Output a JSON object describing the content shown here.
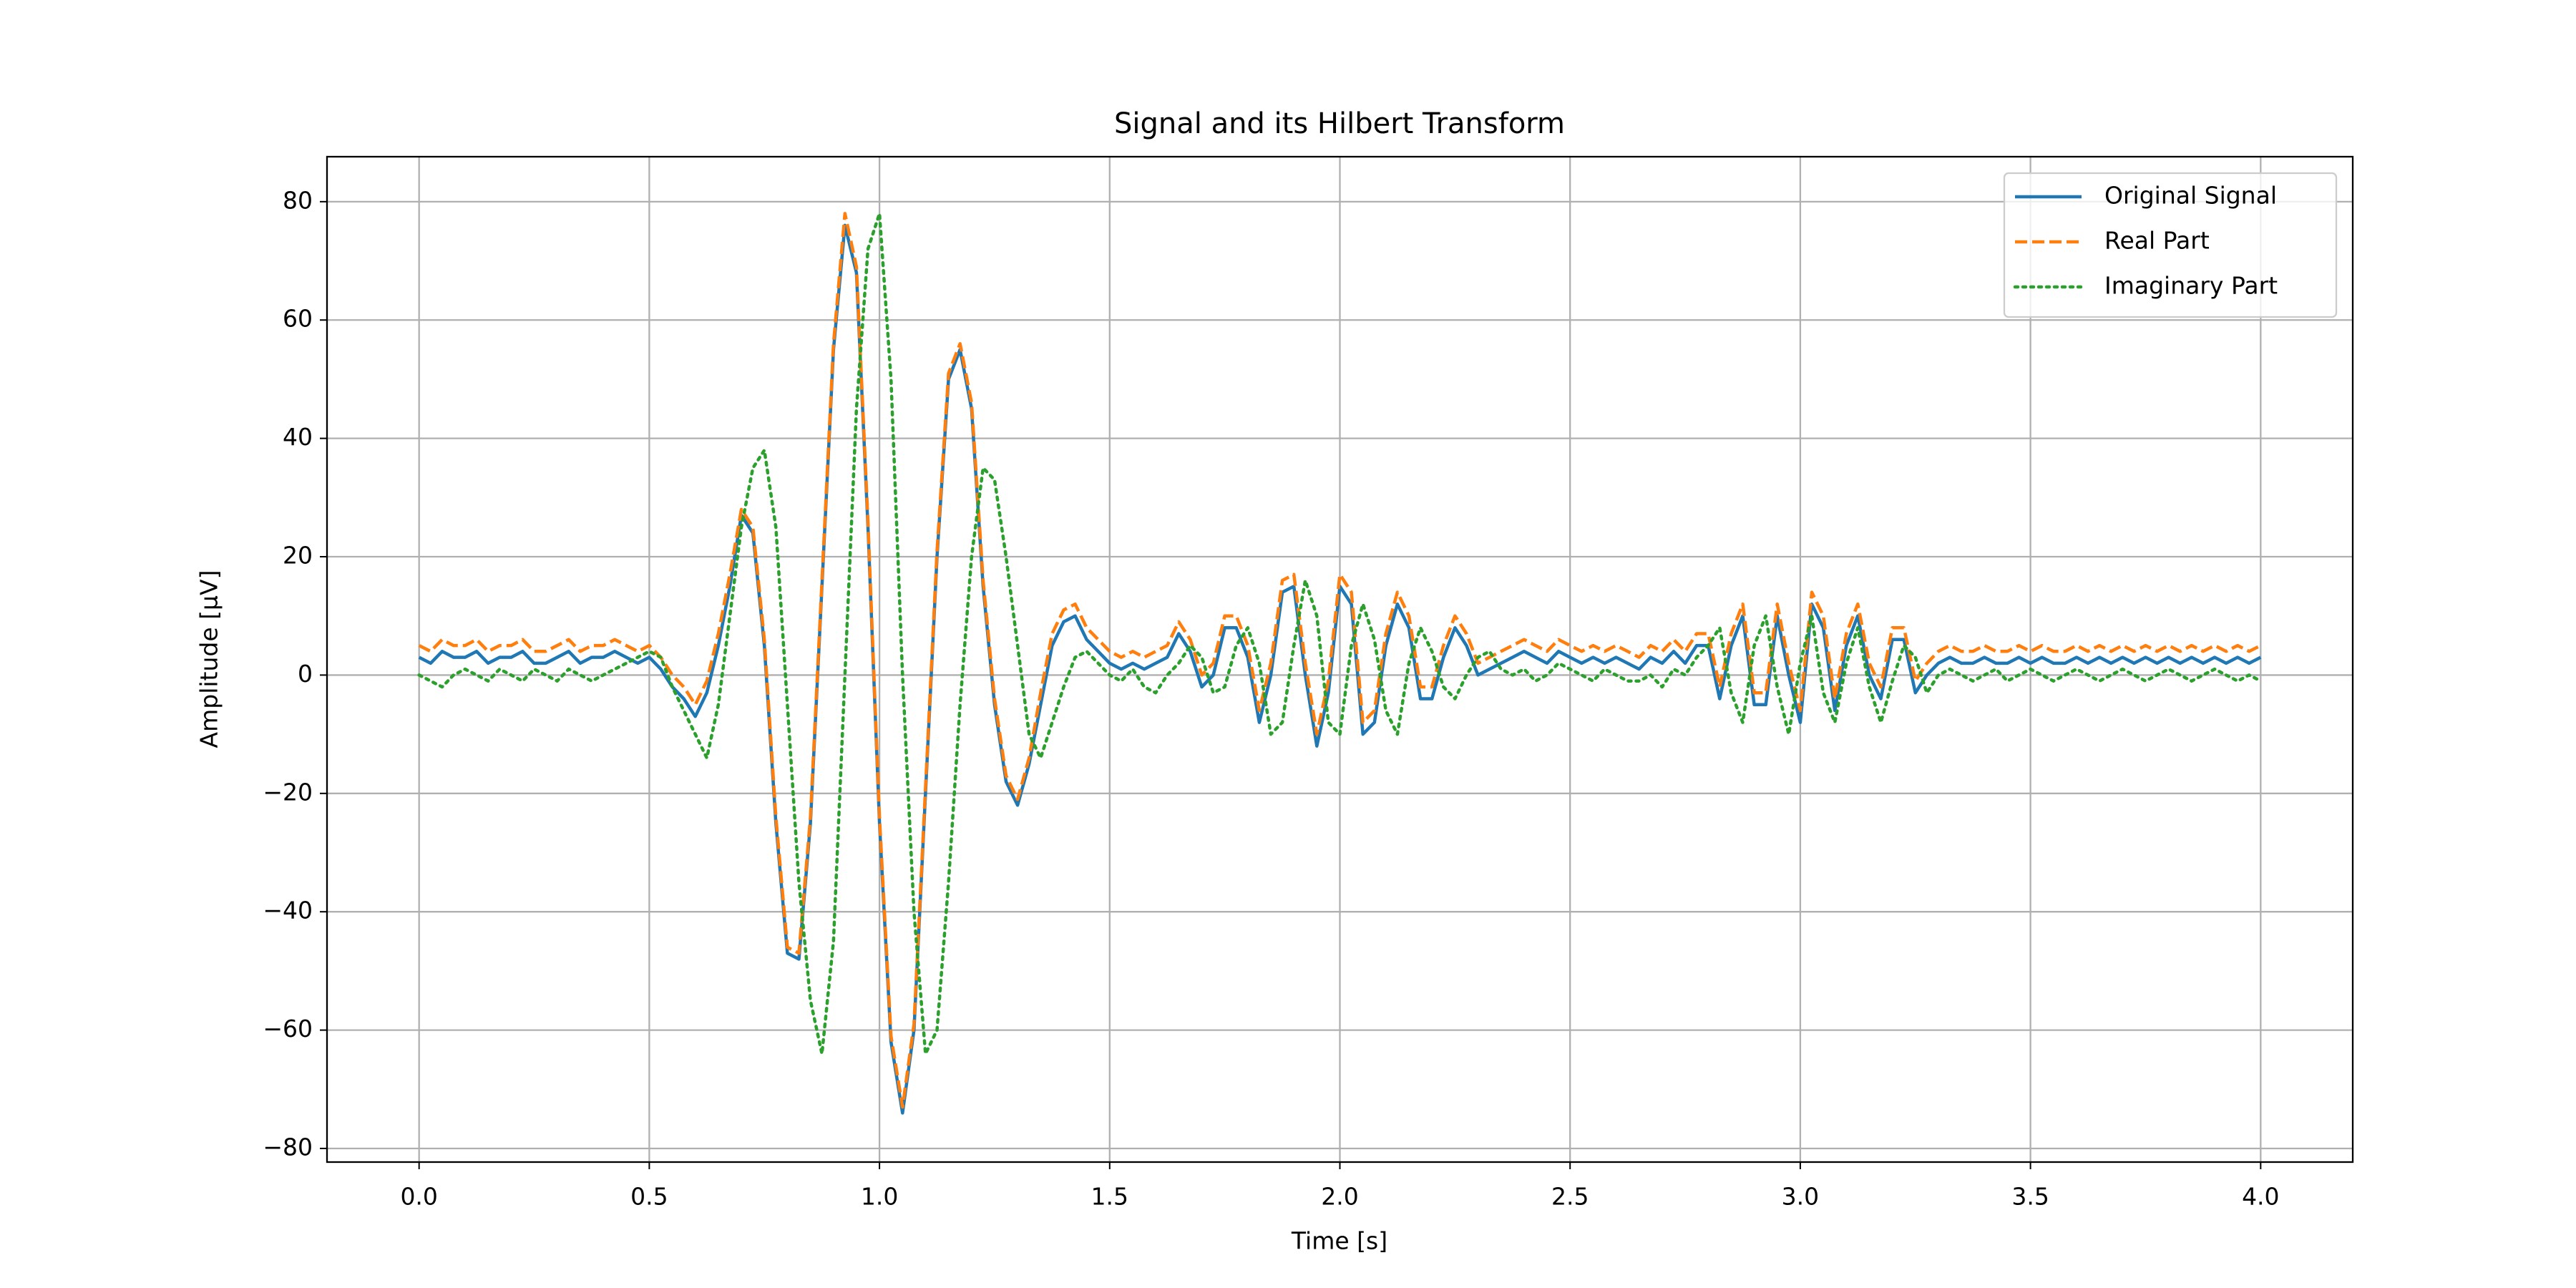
{
  "chart_data": {
    "type": "line",
    "title": "Signal and its Hilbert Transform",
    "x_label": "Time [s]",
    "y_label": "Amplitude [μV]",
    "x": [
      0,
      0.025,
      0.05,
      0.075,
      0.1,
      0.125,
      0.15,
      0.175,
      0.2,
      0.225,
      0.25,
      0.275,
      0.3,
      0.325,
      0.35,
      0.375,
      0.4,
      0.425,
      0.45,
      0.475,
      0.5,
      0.525,
      0.55,
      0.575,
      0.6,
      0.625,
      0.65,
      0.675,
      0.7,
      0.725,
      0.75,
      0.775,
      0.8,
      0.825,
      0.85,
      0.875,
      0.9,
      0.925,
      0.95,
      0.975,
      1,
      1.025,
      1.05,
      1.075,
      1.1,
      1.125,
      1.15,
      1.175,
      1.2,
      1.225,
      1.25,
      1.275,
      1.3,
      1.325,
      1.35,
      1.375,
      1.4,
      1.425,
      1.45,
      1.475,
      1.5,
      1.525,
      1.55,
      1.575,
      1.6,
      1.625,
      1.65,
      1.675,
      1.7,
      1.725,
      1.75,
      1.775,
      1.8,
      1.825,
      1.85,
      1.875,
      1.9,
      1.925,
      1.95,
      1.975,
      2,
      2.025,
      2.05,
      2.075,
      2.1,
      2.125,
      2.15,
      2.175,
      2.2,
      2.225,
      2.25,
      2.275,
      2.3,
      2.325,
      2.35,
      2.375,
      2.4,
      2.425,
      2.45,
      2.475,
      2.5,
      2.525,
      2.55,
      2.575,
      2.6,
      2.625,
      2.65,
      2.675,
      2.7,
      2.725,
      2.75,
      2.775,
      2.8,
      2.825,
      2.85,
      2.875,
      2.9,
      2.925,
      2.95,
      2.975,
      3,
      3.025,
      3.05,
      3.075,
      3.1,
      3.125,
      3.15,
      3.175,
      3.2,
      3.225,
      3.25,
      3.275,
      3.3,
      3.325,
      3.35,
      3.375,
      3.4,
      3.425,
      3.45,
      3.475,
      3.5,
      3.525,
      3.55,
      3.575,
      3.6,
      3.625,
      3.65,
      3.675,
      3.7,
      3.725,
      3.75,
      3.775,
      3.8,
      3.825,
      3.85,
      3.875,
      3.9,
      3.925,
      3.95,
      3.975,
      4
    ],
    "series": [
      {
        "name": "Original Signal",
        "color": "#1f77b4",
        "linestyle": "solid",
        "values": [
          3,
          2,
          4,
          3,
          3,
          4,
          2,
          3,
          3,
          4,
          2,
          2,
          3,
          4,
          2,
          3,
          3,
          4,
          3,
          2,
          3,
          1,
          -2,
          -4,
          -7,
          -3,
          5,
          15,
          27,
          24,
          5,
          -25,
          -47,
          -48,
          -25,
          15,
          55,
          76,
          68,
          25,
          -25,
          -62,
          -74,
          -60,
          -20,
          20,
          50,
          55,
          45,
          15,
          -5,
          -18,
          -22,
          -15,
          -5,
          5,
          9,
          10,
          6,
          4,
          2,
          1,
          2,
          1,
          2,
          3,
          7,
          4,
          -2,
          0,
          8,
          8,
          3,
          -8,
          0,
          14,
          15,
          0,
          -12,
          -3,
          15,
          12,
          -10,
          -8,
          5,
          12,
          8,
          -4,
          -4,
          3,
          8,
          5,
          0,
          1,
          2,
          3,
          4,
          3,
          2,
          4,
          3,
          2,
          3,
          2,
          3,
          2,
          1,
          3,
          2,
          4,
          2,
          5,
          5,
          -4,
          5,
          10,
          -5,
          -5,
          10,
          0,
          -8,
          12,
          8,
          -6,
          5,
          10,
          0,
          -4,
          6,
          6,
          -3,
          0,
          2,
          3,
          2,
          2,
          3,
          2,
          2,
          3,
          2,
          3,
          2,
          2,
          3,
          2,
          3,
          2,
          3,
          2,
          3,
          2,
          3,
          2,
          3,
          2,
          3,
          2,
          3,
          2,
          3
        ]
      },
      {
        "name": "Real Part",
        "color": "#ff7f0e",
        "linestyle": "dashed",
        "values": [
          5,
          4,
          6,
          5,
          5,
          6,
          4,
          5,
          5,
          6,
          4,
          4,
          5,
          6,
          4,
          5,
          5,
          6,
          5,
          4,
          5,
          3,
          0,
          -2,
          -5,
          -1,
          7,
          17,
          28,
          25,
          6,
          -24,
          -46,
          -47,
          -24,
          16,
          56,
          78,
          69,
          26,
          -24,
          -61,
          -73,
          -59,
          -19,
          21,
          51,
          56,
          46,
          16,
          -4,
          -17,
          -21,
          -14,
          -3,
          7,
          11,
          12,
          8,
          6,
          4,
          3,
          4,
          3,
          4,
          5,
          9,
          6,
          0,
          2,
          10,
          10,
          5,
          -6,
          2,
          16,
          17,
          2,
          -10,
          -1,
          17,
          14,
          -8,
          -6,
          7,
          14,
          10,
          -2,
          -2,
          5,
          10,
          7,
          2,
          3,
          4,
          5,
          6,
          5,
          4,
          6,
          5,
          4,
          5,
          4,
          5,
          4,
          3,
          5,
          4,
          6,
          4,
          7,
          7,
          -2,
          7,
          12,
          -3,
          -3,
          12,
          2,
          -6,
          14,
          10,
          -4,
          7,
          12,
          2,
          -2,
          8,
          8,
          -1,
          2,
          4,
          5,
          4,
          4,
          5,
          4,
          4,
          5,
          4,
          5,
          4,
          4,
          5,
          4,
          5,
          4,
          5,
          4,
          5,
          4,
          5,
          4,
          5,
          4,
          5,
          4,
          5,
          4,
          5
        ]
      },
      {
        "name": "Imaginary Part",
        "color": "#2ca02c",
        "linestyle": "dotted",
        "values": [
          0,
          -1,
          -2,
          0,
          1,
          0,
          -1,
          1,
          0,
          -1,
          1,
          0,
          -1,
          1,
          0,
          -1,
          0,
          1,
          2,
          3,
          4,
          3,
          -2,
          -6,
          -10,
          -14,
          -5,
          10,
          25,
          35,
          38,
          25,
          -5,
          -35,
          -55,
          -64,
          -45,
          0,
          45,
          72,
          78,
          50,
          0,
          -40,
          -64,
          -60,
          -35,
          -5,
          20,
          35,
          33,
          20,
          5,
          -10,
          -14,
          -8,
          -2,
          3,
          4,
          2,
          0,
          -1,
          1,
          -2,
          -3,
          0,
          2,
          5,
          3,
          -3,
          -2,
          5,
          8,
          2,
          -10,
          -8,
          5,
          16,
          10,
          -8,
          -10,
          5,
          12,
          6,
          -6,
          -10,
          2,
          8,
          4,
          -2,
          -4,
          0,
          3,
          4,
          1,
          0,
          1,
          -1,
          0,
          2,
          1,
          0,
          -1,
          1,
          0,
          -1,
          -1,
          0,
          -2,
          1,
          0,
          3,
          5,
          8,
          -3,
          -8,
          5,
          10,
          -2,
          -10,
          2,
          10,
          -3,
          -8,
          2,
          8,
          -2,
          -8,
          -1,
          5,
          3,
          -3,
          0,
          1,
          0,
          -1,
          0,
          1,
          -1,
          0,
          1,
          0,
          -1,
          0,
          1,
          0,
          -1,
          0,
          1,
          0,
          -1,
          0,
          1,
          0,
          -1,
          0,
          1,
          0,
          -1,
          0,
          -1
        ]
      }
    ],
    "xlim": [
      -0.2,
      4.2
    ],
    "ylim": [
      -82.3,
      87.6
    ],
    "xticks": [
      {
        "value": 0,
        "label": "0.0"
      },
      0.5,
      {
        "value": 1,
        "label": "1.0"
      },
      1.5,
      {
        "value": 2,
        "label": "2.0"
      },
      2.5,
      {
        "value": 3,
        "label": "3.0"
      },
      3.5,
      {
        "value": 4,
        "label": "4.0"
      }
    ],
    "yticks": [
      {
        "value": -80,
        "label": "−80"
      },
      {
        "value": -60,
        "label": "−60"
      },
      {
        "value": -40,
        "label": "−40"
      },
      {
        "value": -20,
        "label": "−20"
      },
      0,
      20,
      40,
      60,
      80
    ],
    "grid": true,
    "legend": "upper right"
  }
}
